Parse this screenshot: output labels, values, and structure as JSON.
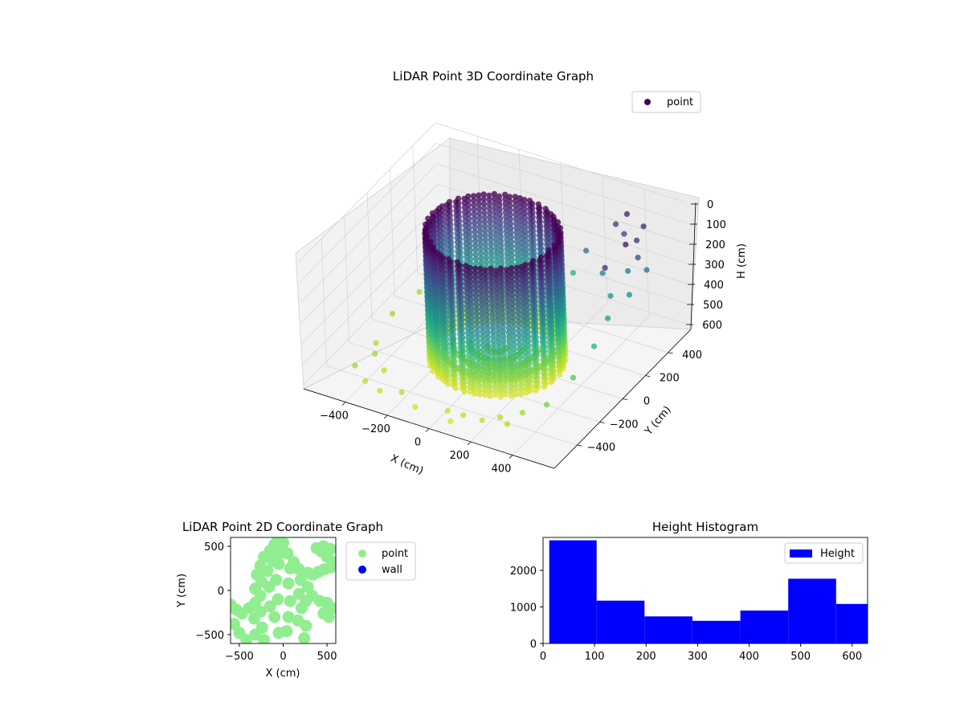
{
  "chart_data": [
    {
      "type": "scatter3d",
      "title": "LiDAR Point 3D Coordinate Graph",
      "xlabel": "X (cm)",
      "ylabel": "Y (cm)",
      "zlabel": "H (cm)",
      "xlim": [
        -600,
        600
      ],
      "ylim": [
        -600,
        600
      ],
      "zlim": [
        0,
        620
      ],
      "zaxis_inverted": true,
      "xticks": [
        "−400",
        "−200",
        "0",
        "200",
        "400"
      ],
      "yticks": [
        "−400",
        "−200",
        "0",
        "200",
        "400"
      ],
      "zticks": [
        "0",
        "100",
        "200",
        "300",
        "400",
        "500",
        "600"
      ],
      "grid": true,
      "colormap": "viridis",
      "legend": {
        "placement": "upper-right",
        "entries": [
          {
            "label": "point",
            "color": "#440154"
          }
        ]
      },
      "series": [
        {
          "name": "point",
          "description": "circular wall of points, radius ~270 cm, heights 0-620 cm, plus scattered floor returns",
          "ring": {
            "radius": 270,
            "h_min": 0,
            "h_max": 620
          },
          "scatter_points": [
            {
              "x": -450,
              "y": -420,
              "h": 560
            },
            {
              "x": -380,
              "y": -460,
              "h": 590
            },
            {
              "x": -300,
              "y": -480,
              "h": 600
            },
            {
              "x": -200,
              "y": -470,
              "h": 580
            },
            {
              "x": -120,
              "y": -500,
              "h": 610
            },
            {
              "x": 20,
              "y": -470,
              "h": 600
            },
            {
              "x": 100,
              "y": -480,
              "h": 590
            },
            {
              "x": 180,
              "y": -460,
              "h": 600
            },
            {
              "x": 250,
              "y": -430,
              "h": 580
            },
            {
              "x": 330,
              "y": -380,
              "h": 560
            },
            {
              "x": 420,
              "y": -330,
              "h": 520
            },
            {
              "x": 450,
              "y": -150,
              "h": 480
            },
            {
              "x": 460,
              "y": 20,
              "h": 420
            },
            {
              "x": 440,
              "y": 180,
              "h": 380
            },
            {
              "x": 400,
              "y": 280,
              "h": 340
            },
            {
              "x": 320,
              "y": 360,
              "h": 300
            },
            {
              "x": 210,
              "y": 420,
              "h": 260
            },
            {
              "x": -480,
              "y": 200,
              "h": 560
            },
            {
              "x": -500,
              "y": 0,
              "h": 560
            },
            {
              "x": -470,
              "y": -200,
              "h": 580
            },
            {
              "x": -400,
              "y": 330,
              "h": 520
            },
            {
              "x": -300,
              "y": 420,
              "h": 500
            },
            {
              "x": -150,
              "y": 470,
              "h": 480
            },
            {
              "x": 0,
              "y": 480,
              "h": 450
            },
            {
              "x": 120,
              "y": 460,
              "h": 420
            },
            {
              "x": 420,
              "y": 400,
              "h": 280
            },
            {
              "x": 480,
              "y": 300,
              "h": 320
            },
            {
              "x": 500,
              "y": 420,
              "h": 260
            },
            {
              "x": 470,
              "y": 460,
              "h": 80
            },
            {
              "x": 380,
              "y": 480,
              "h": 60
            },
            {
              "x": 480,
              "y": 380,
              "h": 100
            },
            {
              "x": 500,
              "y": 250,
              "h": 40
            },
            {
              "x": 470,
              "y": 120,
              "h": 90
            },
            {
              "x": 330,
              "y": 470,
              "h": 120
            },
            {
              "x": -350,
              "y": -350,
              "h": 590
            },
            {
              "x": -420,
              "y": -300,
              "h": 560
            },
            {
              "x": 60,
              "y": -520,
              "h": 610
            },
            {
              "x": 300,
              "y": -460,
              "h": 580
            },
            {
              "x": 380,
              "y": 450,
              "h": 140
            },
            {
              "x": 500,
              "y": 350,
              "h": 160
            }
          ]
        }
      ]
    },
    {
      "type": "scatter",
      "title": "LiDAR Point 2D Coordinate Graph",
      "xlabel": "X (cm)",
      "ylabel": "Y (cm)",
      "xlim": [
        -600,
        600
      ],
      "ylim": [
        -600,
        600
      ],
      "xticks": [
        "−500",
        "0",
        "500"
      ],
      "yticks": [
        "−500",
        "0",
        "500"
      ],
      "grid": false,
      "legend": {
        "placement": "outside-right",
        "entries": [
          {
            "label": "point",
            "color": "#90ee90"
          },
          {
            "label": "wall",
            "color": "#0000ff"
          }
        ]
      },
      "series": [
        {
          "name": "point",
          "color": "#90ee90",
          "points": [
            [
              -100,
              520
            ],
            [
              -60,
              560
            ],
            [
              0,
              540
            ],
            [
              -150,
              450
            ],
            [
              -40,
              420
            ],
            [
              -220,
              380
            ],
            [
              -120,
              330
            ],
            [
              -260,
              280
            ],
            [
              -180,
              220
            ],
            [
              -300,
              180
            ],
            [
              -250,
              100
            ],
            [
              -320,
              20
            ],
            [
              -260,
              -60
            ],
            [
              -320,
              -140
            ],
            [
              -260,
              -240
            ],
            [
              -330,
              -320
            ],
            [
              -240,
              -420
            ],
            [
              -320,
              -500
            ],
            [
              -220,
              -560
            ],
            [
              -420,
              -560
            ],
            [
              -500,
              -480
            ],
            [
              -560,
              -380
            ],
            [
              -600,
              -160
            ],
            [
              -530,
              -220
            ],
            [
              -470,
              -260
            ],
            [
              -390,
              -200
            ],
            [
              -50,
              300
            ],
            [
              -80,
              120
            ],
            [
              -60,
              -100
            ],
            [
              -100,
              -300
            ],
            [
              -50,
              -480
            ],
            [
              50,
              420
            ],
            [
              80,
              250
            ],
            [
              60,
              80
            ],
            [
              80,
              -120
            ],
            [
              60,
              -300
            ],
            [
              40,
              -460
            ],
            [
              120,
              320
            ],
            [
              180,
              240
            ],
            [
              200,
              120
            ],
            [
              180,
              -40
            ],
            [
              210,
              -200
            ],
            [
              170,
              -340
            ],
            [
              260,
              -400
            ],
            [
              240,
              -540
            ],
            [
              280,
              200
            ],
            [
              340,
              180
            ],
            [
              400,
              210
            ],
            [
              470,
              240
            ],
            [
              540,
              260
            ],
            [
              560,
              330
            ],
            [
              500,
              380
            ],
            [
              440,
              440
            ],
            [
              380,
              480
            ],
            [
              460,
              500
            ],
            [
              540,
              470
            ],
            [
              280,
              40
            ],
            [
              330,
              -60
            ],
            [
              420,
              -120
            ],
            [
              500,
              -140
            ],
            [
              560,
              -200
            ],
            [
              520,
              -300
            ],
            [
              460,
              -260
            ],
            [
              260,
              -120
            ],
            [
              -150,
              -180
            ],
            [
              -160,
              40
            ]
          ]
        },
        {
          "name": "wall",
          "color": "#0000ff",
          "points": []
        }
      ]
    },
    {
      "type": "histogram",
      "title": "Height Histogram",
      "xlabel": "",
      "ylabel": "",
      "xlim": [
        0,
        630
      ],
      "ylim": [
        0,
        2900
      ],
      "xticks": [
        "0",
        "100",
        "200",
        "300",
        "400",
        "500",
        "600"
      ],
      "yticks": [
        "0",
        "1000",
        "2000"
      ],
      "legend": {
        "placement": "upper-right",
        "entries": [
          {
            "label": "Height",
            "color": "#0000ff"
          }
        ]
      },
      "series": [
        {
          "name": "Height",
          "color": "#0000ff",
          "bins": [
            {
              "start": 12,
              "end": 104,
              "count": 2820
            },
            {
              "start": 104,
              "end": 197,
              "count": 1170
            },
            {
              "start": 197,
              "end": 290,
              "count": 740
            },
            {
              "start": 290,
              "end": 383,
              "count": 620
            },
            {
              "start": 383,
              "end": 476,
              "count": 900
            },
            {
              "start": 476,
              "end": 569,
              "count": 1770
            },
            {
              "start": 569,
              "end": 662,
              "count": 1080
            }
          ]
        }
      ]
    }
  ]
}
